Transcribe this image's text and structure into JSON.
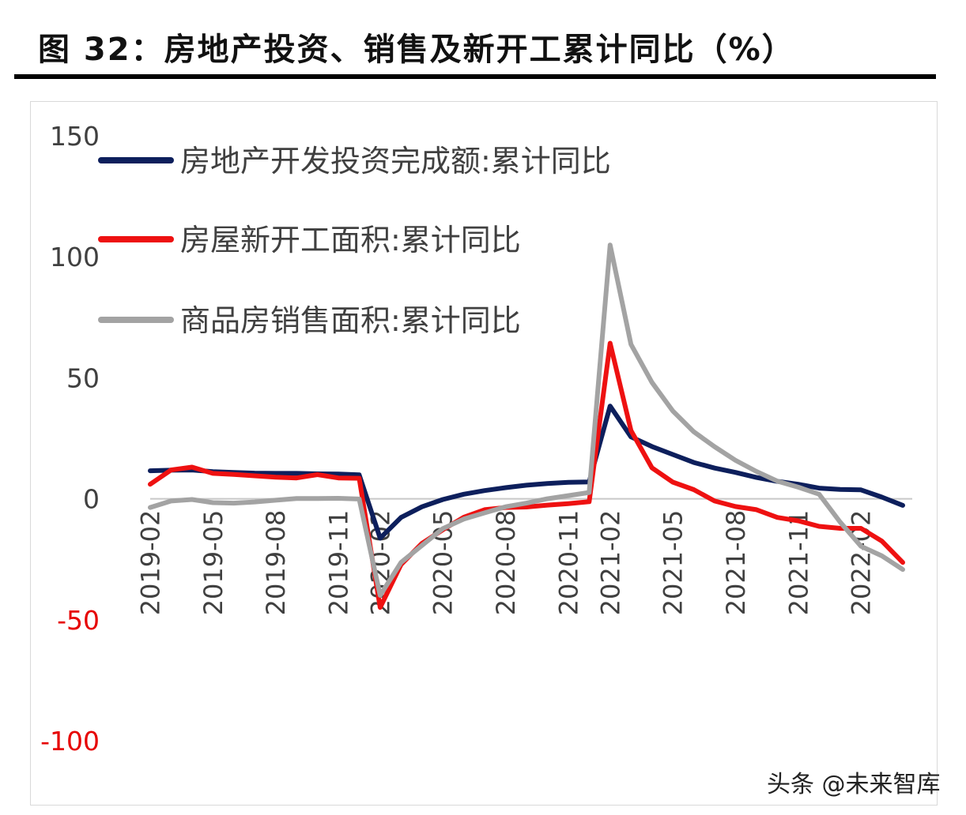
{
  "title": "图 32：房地产投资、销售及新开工累计同比（%）",
  "watermark": "头条 @未来智库",
  "chart_data": {
    "type": "line",
    "title": "图 32：房地产投资、销售及新开工累计同比（%）",
    "xlabel": "",
    "ylabel": "",
    "ylim": [
      -100,
      150
    ],
    "yticks": [
      150,
      100,
      50,
      0,
      -50,
      -100
    ],
    "negative_tick_color": "#e60000",
    "grid": false,
    "legend_position": "top-left",
    "x": [
      "2019-02",
      "2019-03",
      "2019-04",
      "2019-05",
      "2019-06",
      "2019-07",
      "2019-08",
      "2019-09",
      "2019-10",
      "2019-11",
      "2019-12",
      "2020-02",
      "2020-03",
      "2020-04",
      "2020-05",
      "2020-06",
      "2020-07",
      "2020-08",
      "2020-09",
      "2020-10",
      "2020-11",
      "2020-12",
      "2021-02",
      "2021-03",
      "2021-04",
      "2021-05",
      "2021-06",
      "2021-07",
      "2021-08",
      "2021-09",
      "2021-10",
      "2021-11",
      "2021-12",
      "2022-01",
      "2022-02",
      "2022-03",
      "2022-04"
    ],
    "xtick_labels": [
      "2019-02",
      "2019-05",
      "2019-08",
      "2019-11",
      "2020-02",
      "2020-05",
      "2020-08",
      "2020-11",
      "2021-02",
      "2021-05",
      "2021-08",
      "2021-11",
      "2022-02"
    ],
    "series": [
      {
        "name": "房地产开发投资完成额:累计同比",
        "color": "#0d1f5c",
        "values": [
          11.6,
          11.8,
          11.9,
          11.2,
          10.9,
          10.6,
          10.5,
          10.5,
          10.3,
          10.2,
          9.9,
          -16.3,
          -7.7,
          -3.3,
          -0.3,
          1.9,
          3.4,
          4.6,
          5.6,
          6.3,
          6.8,
          7.0,
          38.3,
          25.6,
          21.6,
          18.3,
          15.0,
          12.7,
          10.9,
          8.8,
          7.2,
          6.0,
          4.4,
          3.9,
          3.7,
          0.7,
          -2.7
        ]
      },
      {
        "name": "房屋新开工面积:累计同比",
        "color": "#ee1111",
        "values": [
          6.0,
          11.9,
          13.1,
          10.5,
          10.1,
          9.5,
          8.9,
          8.6,
          10.0,
          8.6,
          8.5,
          -44.9,
          -27.2,
          -18.4,
          -12.8,
          -7.6,
          -4.5,
          -3.6,
          -3.4,
          -2.6,
          -2.0,
          -1.2,
          64.3,
          28.2,
          12.8,
          6.9,
          3.8,
          -0.9,
          -3.2,
          -4.5,
          -7.7,
          -9.1,
          -11.4,
          -12.2,
          -12.2,
          -17.5,
          -26.3
        ]
      },
      {
        "name": "商品房销售面积:累计同比",
        "color": "#a3a3a3",
        "values": [
          -3.6,
          -0.9,
          -0.3,
          -1.6,
          -1.8,
          -1.3,
          -0.6,
          0.1,
          0.1,
          0.2,
          -0.1,
          -39.9,
          -26.3,
          -19.3,
          -12.3,
          -8.4,
          -5.8,
          -3.3,
          -1.8,
          0.0,
          1.3,
          2.6,
          104.9,
          63.8,
          48.1,
          36.3,
          27.7,
          21.5,
          15.9,
          11.3,
          7.3,
          4.8,
          1.9,
          -9.6,
          -19.6,
          -23.6,
          -29.2
        ]
      }
    ]
  }
}
